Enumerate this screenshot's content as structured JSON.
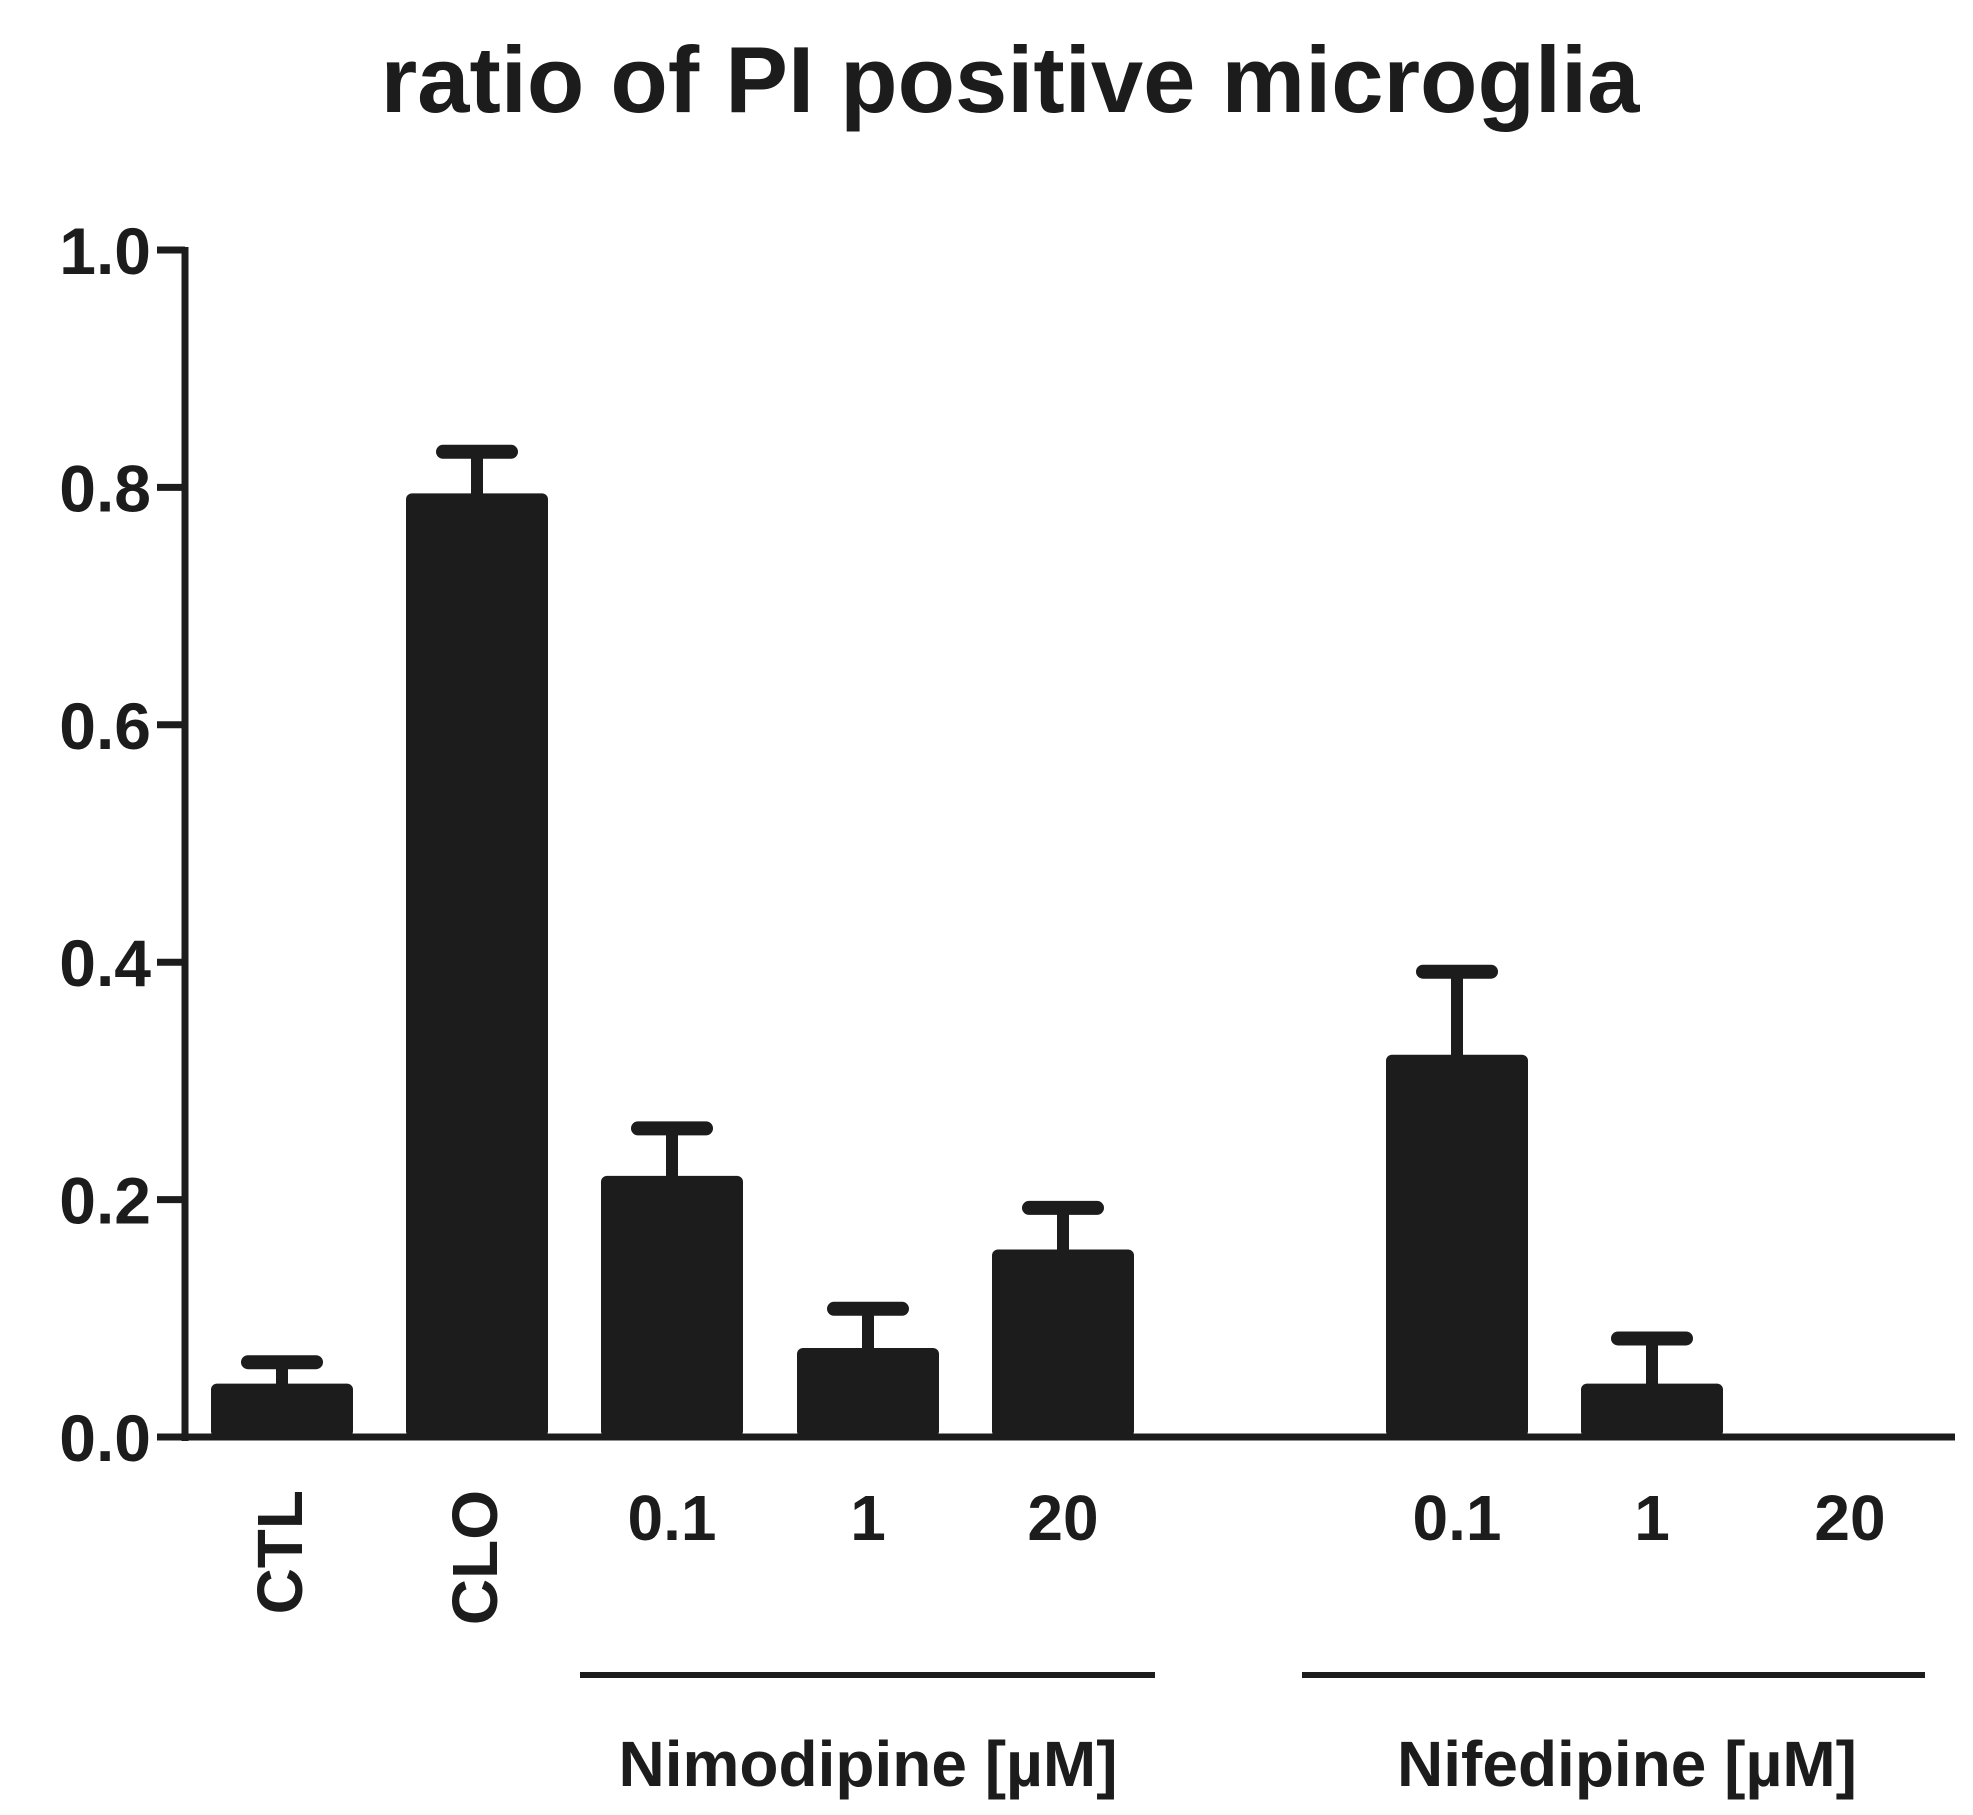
{
  "chart_data": {
    "type": "bar",
    "title": "ratio of PI positive microglia",
    "xlabel": "",
    "ylabel": "",
    "ylim": [
      0,
      1.0
    ],
    "yticks": [
      0.0,
      0.2,
      0.4,
      0.6,
      0.8,
      1.0
    ],
    "ytick_labels": [
      "0.0",
      "0.2",
      "0.4",
      "0.6",
      "0.8",
      "1.0"
    ],
    "grid": false,
    "categories": [
      "CTL",
      "CLO",
      "0.1",
      "1",
      "20",
      "0.1",
      "1",
      "20"
    ],
    "values": [
      0.045,
      0.795,
      0.22,
      0.075,
      0.158,
      0.322,
      0.045,
      0.0
    ],
    "error_upper": [
      0.018,
      0.035,
      0.04,
      0.033,
      0.035,
      0.07,
      0.038,
      0.0
    ],
    "groups": [
      {
        "label": "Nimodipine [µM]",
        "members": [
          2,
          3,
          4
        ]
      },
      {
        "label": "Nifedipine [µM]",
        "members": [
          5,
          6,
          7
        ]
      }
    ],
    "bar_color": "#1c1c1c"
  }
}
